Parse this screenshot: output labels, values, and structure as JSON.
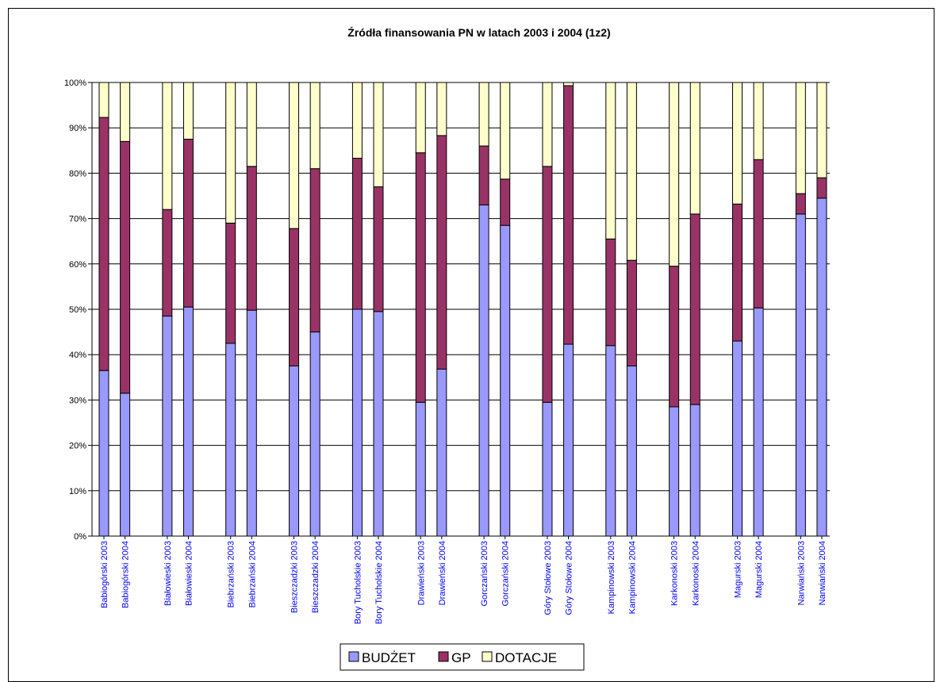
{
  "chart_data": {
    "type": "bar",
    "stacked": "percent",
    "title": "Źródła finansowania PN w latach 2003 i 2004 (1z2)",
    "categories": [
      "Babiogórski 2003",
      "Babiogórski 2004",
      "Białowieski 2003",
      "Białowieski 2004",
      "Biebrzański 2003",
      "Biebrzański 2004",
      "Bieszczadzki 2003",
      "Bieszczadzki 2004",
      "Bory Tucholskie 2003",
      "Bory Tucholskie 2004",
      "Drawieński 2003",
      "Drawieński 2004",
      "Gorczański 2003",
      "Gorczański 2004",
      "Góry Stołowe 2003",
      "Góry Stołowe 2004",
      "Kampinowski 2003",
      "Kampinowski 2004",
      "Karkonoski 2003",
      "Karkonoski 2004",
      "Magurski 2003",
      "Magurski 2004",
      "Narwiański 2003",
      "Narwiański 2004"
    ],
    "series": [
      {
        "name": "BUDŻET",
        "color": "#9999ff",
        "values": [
          36.5,
          31.5,
          48.5,
          50.5,
          42.5,
          49.8,
          37.5,
          45,
          50,
          49.5,
          29.5,
          36.8,
          73,
          68.5,
          29.5,
          42.3,
          42,
          37.5,
          28.5,
          29,
          43,
          50.3,
          71,
          74.5
        ]
      },
      {
        "name": "GP",
        "color": "#993366",
        "values": [
          55.8,
          55.5,
          23.5,
          37,
          26.5,
          31.7,
          30.3,
          36,
          33.3,
          27.5,
          55,
          51.5,
          13,
          10.2,
          52,
          57,
          23.5,
          23.3,
          31,
          42,
          30.2,
          32.7,
          4.5,
          4.5
        ]
      },
      {
        "name": "DOTACJE",
        "color": "#ffffcc",
        "values": [
          7.7,
          13,
          28,
          12.5,
          31,
          18.5,
          32.2,
          19,
          16.7,
          23,
          15.5,
          11.7,
          14,
          21.3,
          18.5,
          0.7,
          34.5,
          39.2,
          40.5,
          29,
          26.8,
          17,
          24.5,
          21
        ]
      }
    ],
    "y_ticks": [
      "0%",
      "10%",
      "20%",
      "30%",
      "40%",
      "50%",
      "60%",
      "70%",
      "80%",
      "90%",
      "100%"
    ],
    "ylim": [
      0,
      100
    ],
    "grid": true,
    "legend_position": "bottom",
    "tick_label_color": "#0000ff"
  }
}
